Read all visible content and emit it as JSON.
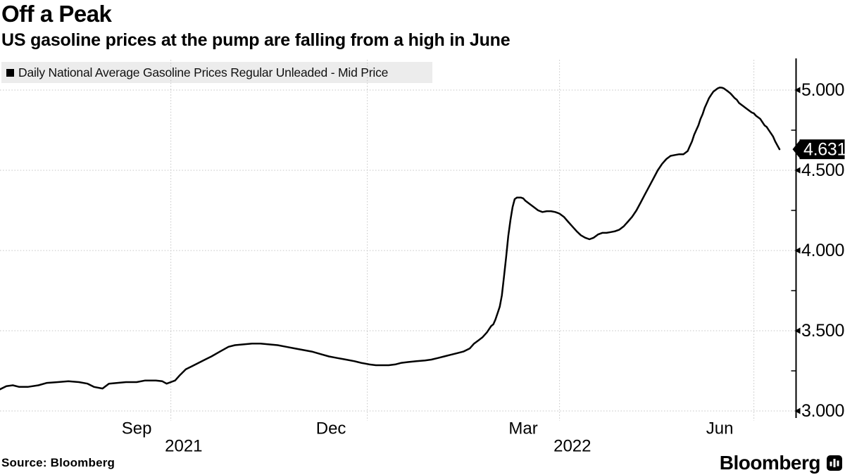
{
  "header": {
    "title": "Off a Peak",
    "subtitle": "US gasoline prices at the pump are falling from a high in June"
  },
  "legend": {
    "label": "Daily National Average Gasoline Prices Regular Unleaded - Mid Price",
    "swatch_color": "#000000"
  },
  "footer": {
    "source": "Source: Bloomberg",
    "brand": "Bloomberg",
    "brand_icon": "bloomberg-bars-bubble-icon"
  },
  "colors": {
    "line": "#000000",
    "grid": "#c4c4c4",
    "axis": "#000000",
    "legend_bg": "#ececec",
    "badge_bg": "#000000",
    "badge_text": "#ffffff"
  },
  "chart_data": {
    "type": "line",
    "title": "Off a Peak",
    "subtitle": "US gasoline prices at the pump are falling from a high in June",
    "grid": "dotted",
    "legend_position": "top-left",
    "value_axis_side": "right",
    "y_axis": {
      "ylim": [
        2.96,
        5.19
      ],
      "major_ticks": [
        5.0,
        4.5,
        4.0,
        3.5,
        3.0
      ],
      "major_tick_labels": [
        "5.000",
        "4.500",
        "4.000",
        "3.500",
        "3.000"
      ],
      "minor_ticks": [
        4.75,
        4.25,
        3.75,
        3.25
      ]
    },
    "x_axis": {
      "start_date": "2021-07-13",
      "end_date": "2022-07-13",
      "gridline_dates": [
        "2021-10-01",
        "2022-01-01",
        "2022-04-01",
        "2022-07-01"
      ],
      "month_labels": [
        {
          "text": "Sep",
          "date": "2021-09-15"
        },
        {
          "text": "Dec",
          "date": "2021-12-15"
        },
        {
          "text": "Mar",
          "date": "2022-03-15"
        },
        {
          "text": "Jun",
          "date": "2022-06-15"
        }
      ],
      "year_labels": [
        {
          "text": "2021",
          "date": "2021-10-07"
        },
        {
          "text": "2022",
          "date": "2022-04-07"
        }
      ]
    },
    "last_point": {
      "label": "4.631",
      "value": 4.631,
      "date": "2022-07-13"
    },
    "series": [
      {
        "name": "Daily National Average Gasoline Prices Regular Unleaded - Mid Price",
        "color": "#000000",
        "points": [
          [
            "2021-07-13",
            3.135
          ],
          [
            "2021-07-16",
            3.155
          ],
          [
            "2021-07-19",
            3.16
          ],
          [
            "2021-07-22",
            3.15
          ],
          [
            "2021-07-26",
            3.15
          ],
          [
            "2021-07-31",
            3.16
          ],
          [
            "2021-08-04",
            3.175
          ],
          [
            "2021-08-09",
            3.18
          ],
          [
            "2021-08-14",
            3.185
          ],
          [
            "2021-08-19",
            3.18
          ],
          [
            "2021-08-23",
            3.17
          ],
          [
            "2021-08-26",
            3.15
          ],
          [
            "2021-08-30",
            3.14
          ],
          [
            "2021-09-02",
            3.17
          ],
          [
            "2021-09-06",
            3.175
          ],
          [
            "2021-09-10",
            3.18
          ],
          [
            "2021-09-15",
            3.18
          ],
          [
            "2021-09-19",
            3.19
          ],
          [
            "2021-09-24",
            3.19
          ],
          [
            "2021-09-27",
            3.185
          ],
          [
            "2021-09-29",
            3.17
          ],
          [
            "2021-10-01",
            3.18
          ],
          [
            "2021-10-03",
            3.19
          ],
          [
            "2021-10-05",
            3.22
          ],
          [
            "2021-10-08",
            3.26
          ],
          [
            "2021-10-11",
            3.28
          ],
          [
            "2021-10-14",
            3.3
          ],
          [
            "2021-10-17",
            3.32
          ],
          [
            "2021-10-20",
            3.34
          ],
          [
            "2021-10-24",
            3.37
          ],
          [
            "2021-10-28",
            3.4
          ],
          [
            "2021-10-31",
            3.41
          ],
          [
            "2021-11-04",
            3.415
          ],
          [
            "2021-11-08",
            3.42
          ],
          [
            "2021-11-12",
            3.42
          ],
          [
            "2021-11-16",
            3.415
          ],
          [
            "2021-11-20",
            3.41
          ],
          [
            "2021-11-24",
            3.4
          ],
          [
            "2021-11-28",
            3.39
          ],
          [
            "2021-12-02",
            3.38
          ],
          [
            "2021-12-06",
            3.37
          ],
          [
            "2021-12-10",
            3.355
          ],
          [
            "2021-12-14",
            3.34
          ],
          [
            "2021-12-18",
            3.33
          ],
          [
            "2021-12-22",
            3.32
          ],
          [
            "2021-12-26",
            3.31
          ],
          [
            "2021-12-29",
            3.3
          ],
          [
            "2021-12-31",
            3.295
          ],
          [
            "2022-01-02",
            3.29
          ],
          [
            "2022-01-05",
            3.285
          ],
          [
            "2022-01-08",
            3.285
          ],
          [
            "2022-01-11",
            3.285
          ],
          [
            "2022-01-14",
            3.29
          ],
          [
            "2022-01-17",
            3.3
          ],
          [
            "2022-01-20",
            3.305
          ],
          [
            "2022-01-24",
            3.31
          ],
          [
            "2022-01-28",
            3.315
          ],
          [
            "2022-01-31",
            3.32
          ],
          [
            "2022-02-03",
            3.33
          ],
          [
            "2022-02-06",
            3.34
          ],
          [
            "2022-02-09",
            3.35
          ],
          [
            "2022-02-12",
            3.36
          ],
          [
            "2022-02-15",
            3.37
          ],
          [
            "2022-02-18",
            3.39
          ],
          [
            "2022-02-20",
            3.42
          ],
          [
            "2022-02-22",
            3.44
          ],
          [
            "2022-02-24",
            3.46
          ],
          [
            "2022-02-26",
            3.49
          ],
          [
            "2022-02-28",
            3.53
          ],
          [
            "2022-03-01",
            3.54
          ],
          [
            "2022-03-02",
            3.57
          ],
          [
            "2022-03-03",
            3.61
          ],
          [
            "2022-03-04",
            3.65
          ],
          [
            "2022-03-05",
            3.72
          ],
          [
            "2022-03-06",
            3.84
          ],
          [
            "2022-03-07",
            3.96
          ],
          [
            "2022-03-08",
            4.09
          ],
          [
            "2022-03-09",
            4.19
          ],
          [
            "2022-03-10",
            4.27
          ],
          [
            "2022-03-11",
            4.32
          ],
          [
            "2022-03-12",
            4.33
          ],
          [
            "2022-03-14",
            4.33
          ],
          [
            "2022-03-15",
            4.325
          ],
          [
            "2022-03-16",
            4.31
          ],
          [
            "2022-03-18",
            4.29
          ],
          [
            "2022-03-20",
            4.27
          ],
          [
            "2022-03-22",
            4.25
          ],
          [
            "2022-03-24",
            4.24
          ],
          [
            "2022-03-26",
            4.245
          ],
          [
            "2022-03-28",
            4.245
          ],
          [
            "2022-03-30",
            4.24
          ],
          [
            "2022-03-31",
            4.235
          ],
          [
            "2022-04-01",
            4.23
          ],
          [
            "2022-04-03",
            4.21
          ],
          [
            "2022-04-05",
            4.18
          ],
          [
            "2022-04-07",
            4.15
          ],
          [
            "2022-04-09",
            4.12
          ],
          [
            "2022-04-11",
            4.095
          ],
          [
            "2022-04-13",
            4.08
          ],
          [
            "2022-04-15",
            4.07
          ],
          [
            "2022-04-17",
            4.08
          ],
          [
            "2022-04-19",
            4.1
          ],
          [
            "2022-04-21",
            4.11
          ],
          [
            "2022-04-23",
            4.11
          ],
          [
            "2022-04-25",
            4.115
          ],
          [
            "2022-04-27",
            4.12
          ],
          [
            "2022-04-29",
            4.13
          ],
          [
            "2022-05-01",
            4.15
          ],
          [
            "2022-05-03",
            4.18
          ],
          [
            "2022-05-05",
            4.21
          ],
          [
            "2022-05-07",
            4.25
          ],
          [
            "2022-05-09",
            4.3
          ],
          [
            "2022-05-11",
            4.35
          ],
          [
            "2022-05-13",
            4.4
          ],
          [
            "2022-05-15",
            4.45
          ],
          [
            "2022-05-17",
            4.5
          ],
          [
            "2022-05-19",
            4.54
          ],
          [
            "2022-05-21",
            4.57
          ],
          [
            "2022-05-23",
            4.59
          ],
          [
            "2022-05-25",
            4.595
          ],
          [
            "2022-05-27",
            4.6
          ],
          [
            "2022-05-29",
            4.6
          ],
          [
            "2022-05-31",
            4.62
          ],
          [
            "2022-06-01",
            4.65
          ],
          [
            "2022-06-02",
            4.68
          ],
          [
            "2022-06-03",
            4.72
          ],
          [
            "2022-06-04",
            4.75
          ],
          [
            "2022-06-05",
            4.78
          ],
          [
            "2022-06-06",
            4.82
          ],
          [
            "2022-06-07",
            4.85
          ],
          [
            "2022-06-08",
            4.89
          ],
          [
            "2022-06-09",
            4.92
          ],
          [
            "2022-06-10",
            4.95
          ],
          [
            "2022-06-11",
            4.97
          ],
          [
            "2022-06-12",
            4.99
          ],
          [
            "2022-06-13",
            5.0
          ],
          [
            "2022-06-14",
            5.01
          ],
          [
            "2022-06-15",
            5.016
          ],
          [
            "2022-06-16",
            5.015
          ],
          [
            "2022-06-17",
            5.01
          ],
          [
            "2022-06-18",
            5.0
          ],
          [
            "2022-06-19",
            4.99
          ],
          [
            "2022-06-20",
            4.98
          ],
          [
            "2022-06-21",
            4.965
          ],
          [
            "2022-06-22",
            4.95
          ],
          [
            "2022-06-23",
            4.94
          ],
          [
            "2022-06-24",
            4.92
          ],
          [
            "2022-06-25",
            4.91
          ],
          [
            "2022-06-26",
            4.9
          ],
          [
            "2022-06-27",
            4.89
          ],
          [
            "2022-06-28",
            4.88
          ],
          [
            "2022-06-29",
            4.87
          ],
          [
            "2022-06-30",
            4.86
          ],
          [
            "2022-07-01",
            4.855
          ],
          [
            "2022-07-02",
            4.84
          ],
          [
            "2022-07-03",
            4.83
          ],
          [
            "2022-07-04",
            4.82
          ],
          [
            "2022-07-05",
            4.8
          ],
          [
            "2022-07-06",
            4.78
          ],
          [
            "2022-07-07",
            4.77
          ],
          [
            "2022-07-08",
            4.75
          ],
          [
            "2022-07-09",
            4.73
          ],
          [
            "2022-07-10",
            4.71
          ],
          [
            "2022-07-11",
            4.68
          ],
          [
            "2022-07-12",
            4.655
          ],
          [
            "2022-07-13",
            4.631
          ]
        ]
      }
    ]
  }
}
